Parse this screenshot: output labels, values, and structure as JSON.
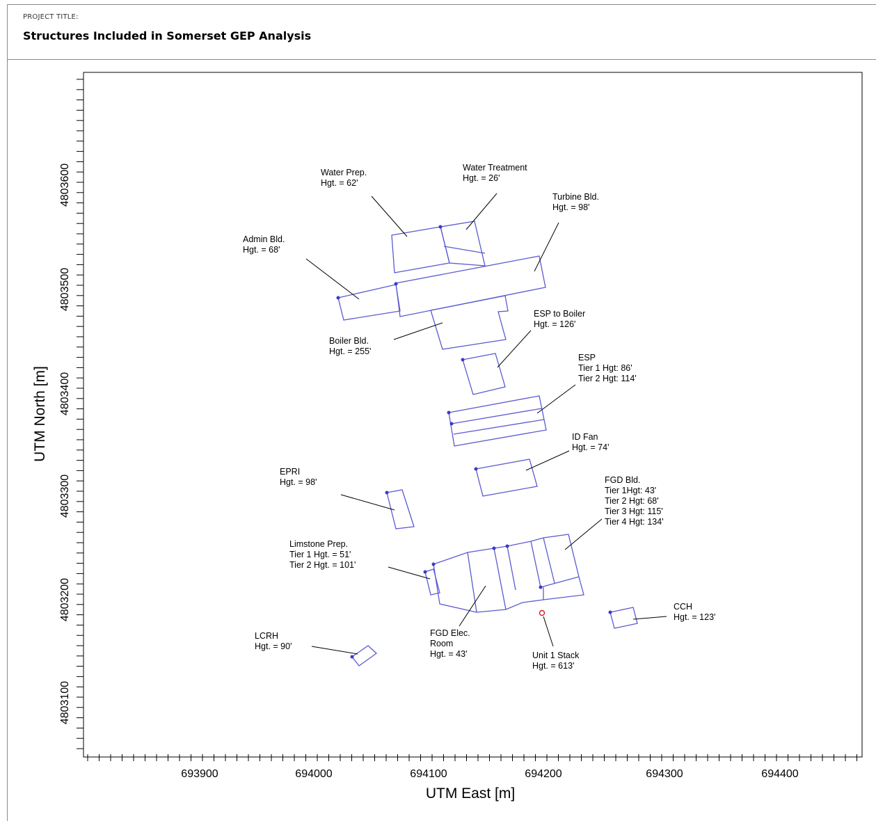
{
  "header": {
    "project_label": "PROJECT TITLE:",
    "project_title": "Structures Included in Somerset GEP Analysis"
  },
  "axes": {
    "x_label": "UTM East [m]",
    "y_label": "UTM North [m]",
    "x_ticks": [
      {
        "value": 693900,
        "label": "693900"
      },
      {
        "value": 694000,
        "label": "694000"
      },
      {
        "value": 694100,
        "label": "694100"
      },
      {
        "value": 694200,
        "label": "694200"
      },
      {
        "value": 694300,
        "label": "694300"
      },
      {
        "value": 694400,
        "label": "694400"
      }
    ],
    "y_ticks": [
      {
        "value": 4803100,
        "label": "4803100"
      },
      {
        "value": 4803200,
        "label": "4803200"
      },
      {
        "value": 4803300,
        "label": "4803300"
      },
      {
        "value": 4803400,
        "label": "4803400"
      },
      {
        "value": 4803500,
        "label": "4803500"
      },
      {
        "value": 4803600,
        "label": "4803600"
      }
    ]
  },
  "colors": {
    "building": "#5a5ad0",
    "vertex": "#3a3ac8",
    "stack": "#d02020",
    "leader": "#000000"
  },
  "labels": {
    "water_prep": [
      "Water Prep.",
      "Hgt. = 62'"
    ],
    "water_treatment": [
      "Water Treatment",
      "Hgt. = 26'"
    ],
    "turbine": [
      "Turbine Bld.",
      "Hgt. = 98'"
    ],
    "admin": [
      "Admin Bld.",
      "Hgt. = 68'"
    ],
    "boiler": [
      "Boiler Bld.",
      "Hgt. = 255'"
    ],
    "esp_to_boiler": [
      "ESP to Boiler",
      "Hgt. = 126'"
    ],
    "esp": [
      "ESP",
      "Tier 1 Hgt: 86'",
      "Tier 2 Hgt: 114'"
    ],
    "id_fan": [
      "ID Fan",
      "Hgt. = 74'"
    ],
    "epri": [
      "EPRI",
      "Hgt. = 98'"
    ],
    "fgd_bld": [
      "FGD Bld.",
      "Tier 1Hgt: 43'",
      "Tier 2 Hgt: 68'",
      "Tier 3 Hgt: 115'",
      "Tier 4 Hgt: 134'"
    ],
    "limestone": [
      "Limstone Prep.",
      "Tier 1 Hgt. = 51'",
      "Tier 2 Hgt. = 101'"
    ],
    "cch": [
      "CCH",
      "Hgt. = 123'"
    ],
    "lcrh": [
      "LCRH",
      "Hgt. = 90'"
    ],
    "fgd_elec": [
      "FGD Elec.",
      "Room",
      "Hgt. = 43'"
    ],
    "unit1_stack": [
      "Unit 1 Stack",
      "Hgt. = 613'"
    ]
  }
}
